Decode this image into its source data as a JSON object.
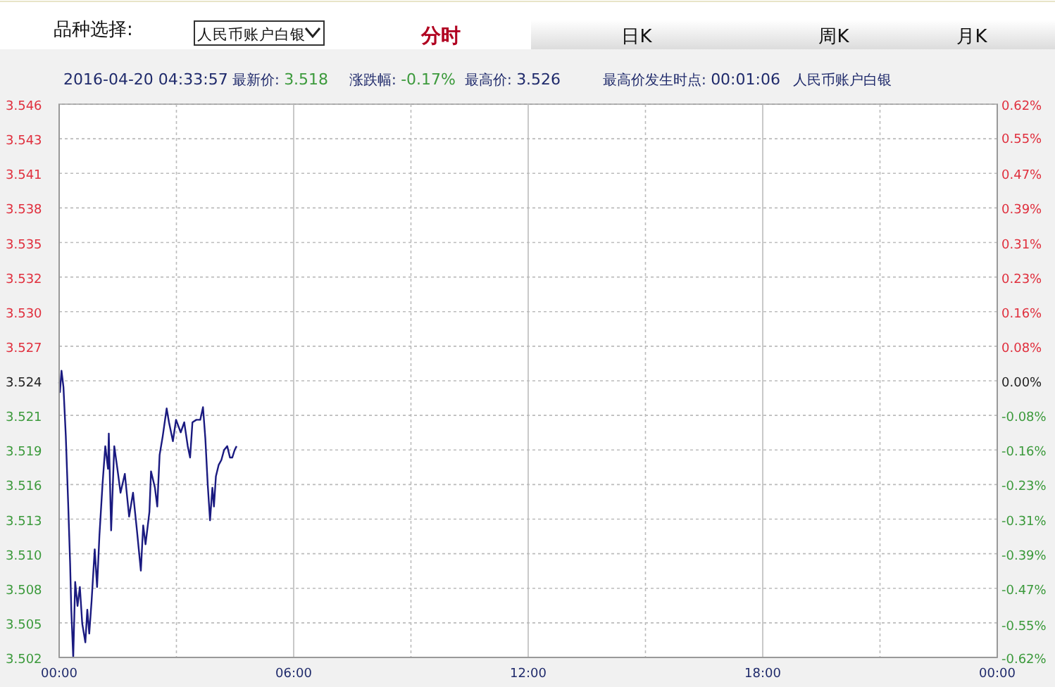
{
  "chart_data": {
    "type": "line",
    "annotations": [
      "品种选择:",
      "人民币账户白银",
      "分时",
      "日K",
      "周K",
      "月K",
      "2016-04-20 04:33:57",
      "最新价: 3.518",
      "涨跌幅: -0.17%",
      "最高价: 3.526",
      "最高价发生时点: 00:01:06",
      "人民币账户白银"
    ],
    "x": [
      0,
      0.02,
      0.06,
      0.11,
      0.17,
      0.23,
      0.28,
      0.31,
      0.36,
      0.41,
      0.47,
      0.53,
      0.59,
      0.67,
      0.72,
      0.77,
      0.83,
      0.91,
      0.97,
      1.03,
      1.11,
      1.18,
      1.25,
      1.27,
      1.33,
      1.41,
      1.49,
      1.57,
      1.68,
      1.79,
      1.89,
      1.99,
      2.09,
      2.15,
      2.21,
      2.31,
      2.35,
      2.45,
      2.51,
      2.57,
      2.65,
      2.75,
      2.81,
      2.91,
      2.99,
      3.11,
      3.2,
      3.29,
      3.35,
      3.41,
      3.51,
      3.61,
      3.68,
      3.74,
      3.8,
      3.86,
      3.92,
      3.96,
      4.01,
      4.08,
      4.15,
      4.22,
      4.3,
      4.37,
      4.43,
      4.49,
      4.54
    ],
    "series": [
      {
        "color": "#1a1a80",
        "values": [
          3.5239,
          3.5231,
          3.5248,
          3.5235,
          3.5196,
          3.5143,
          3.5095,
          3.5058,
          3.502,
          3.508,
          3.5061,
          3.5076,
          3.5047,
          3.5032,
          3.5058,
          3.5039,
          3.5065,
          3.5106,
          3.5076,
          3.5117,
          3.5158,
          3.5188,
          3.517,
          3.5198,
          3.5121,
          3.5188,
          3.517,
          3.5151,
          3.5166,
          3.5132,
          3.5151,
          3.5121,
          3.5089,
          3.5125,
          3.511,
          3.5136,
          3.5168,
          3.5155,
          3.514,
          3.5181,
          3.5196,
          3.5218,
          3.5207,
          3.5192,
          3.5209,
          3.5199,
          3.5207,
          3.5188,
          3.5179,
          3.5207,
          3.5209,
          3.5209,
          3.5219,
          3.5194,
          3.5158,
          3.5129,
          3.5155,
          3.514,
          3.5164,
          3.5173,
          3.5177,
          3.5185,
          3.5188,
          3.5179,
          3.5179,
          3.5185,
          3.5188
        ]
      }
    ],
    "xlim": [
      0,
      24
    ],
    "xticks": [
      {
        "value": 0,
        "label": "00:00"
      },
      {
        "value": 3,
        "label": null
      },
      {
        "value": 6,
        "label": "06:00"
      },
      {
        "value": 9,
        "label": null
      },
      {
        "value": 12,
        "label": "12:00"
      },
      {
        "value": 15,
        "label": null
      },
      {
        "value": 18,
        "label": "18:00"
      },
      {
        "value": 21,
        "label": null
      },
      {
        "value": 24,
        "label": "00:00"
      }
    ],
    "ylim": [
      3.502,
      3.546
    ],
    "yticks": [
      {
        "value": 3.502,
        "label": "3.502"
      },
      {
        "value": 3.50475,
        "label": "3.505"
      },
      {
        "value": 3.5075,
        "label": "3.508"
      },
      {
        "value": 3.51025,
        "label": "3.510"
      },
      {
        "value": 3.513,
        "label": "3.513"
      },
      {
        "value": 3.51575,
        "label": "3.516"
      },
      {
        "value": 3.5185,
        "label": "3.519"
      },
      {
        "value": 3.52125,
        "label": "3.521"
      },
      {
        "value": 3.524,
        "label": "3.524"
      },
      {
        "value": 3.52675,
        "label": "3.527"
      },
      {
        "value": 3.5295,
        "label": "3.530"
      },
      {
        "value": 3.53225,
        "label": "3.532"
      },
      {
        "value": 3.535,
        "label": "3.535"
      },
      {
        "value": 3.53775,
        "label": "3.538"
      },
      {
        "value": 3.5405,
        "label": "3.541"
      },
      {
        "value": 3.54325,
        "label": "3.543"
      },
      {
        "value": 3.546,
        "label": "3.546"
      }
    ],
    "y2lim": [
      -0.62,
      0.62
    ],
    "y2ticks": [
      {
        "value": -0.62,
        "label": "-0.62%"
      },
      {
        "value": -0.546,
        "label": "-0.55%"
      },
      {
        "value": -0.465,
        "label": "-0.47%"
      },
      {
        "value": -0.3875,
        "label": "-0.39%"
      },
      {
        "value": -0.31,
        "label": "-0.31%"
      },
      {
        "value": -0.2325,
        "label": "-0.23%"
      },
      {
        "value": -0.155,
        "label": "-0.16%"
      },
      {
        "value": -0.0775,
        "label": "-0.08%"
      },
      {
        "value": 0,
        "label": "0.00%"
      },
      {
        "value": 0.0775,
        "label": "0.08%"
      },
      {
        "value": 0.155,
        "label": "0.16%"
      },
      {
        "value": 0.2325,
        "label": "0.23%"
      },
      {
        "value": 0.31,
        "label": "0.31%"
      },
      {
        "value": 0.3875,
        "label": "0.39%"
      },
      {
        "value": 0.465,
        "label": "0.47%"
      },
      {
        "value": 0.546,
        "label": "0.55%"
      },
      {
        "value": 0.62,
        "label": "0.62%"
      }
    ],
    "grid": true,
    "line_style": "solid",
    "marker": "none"
  }
}
